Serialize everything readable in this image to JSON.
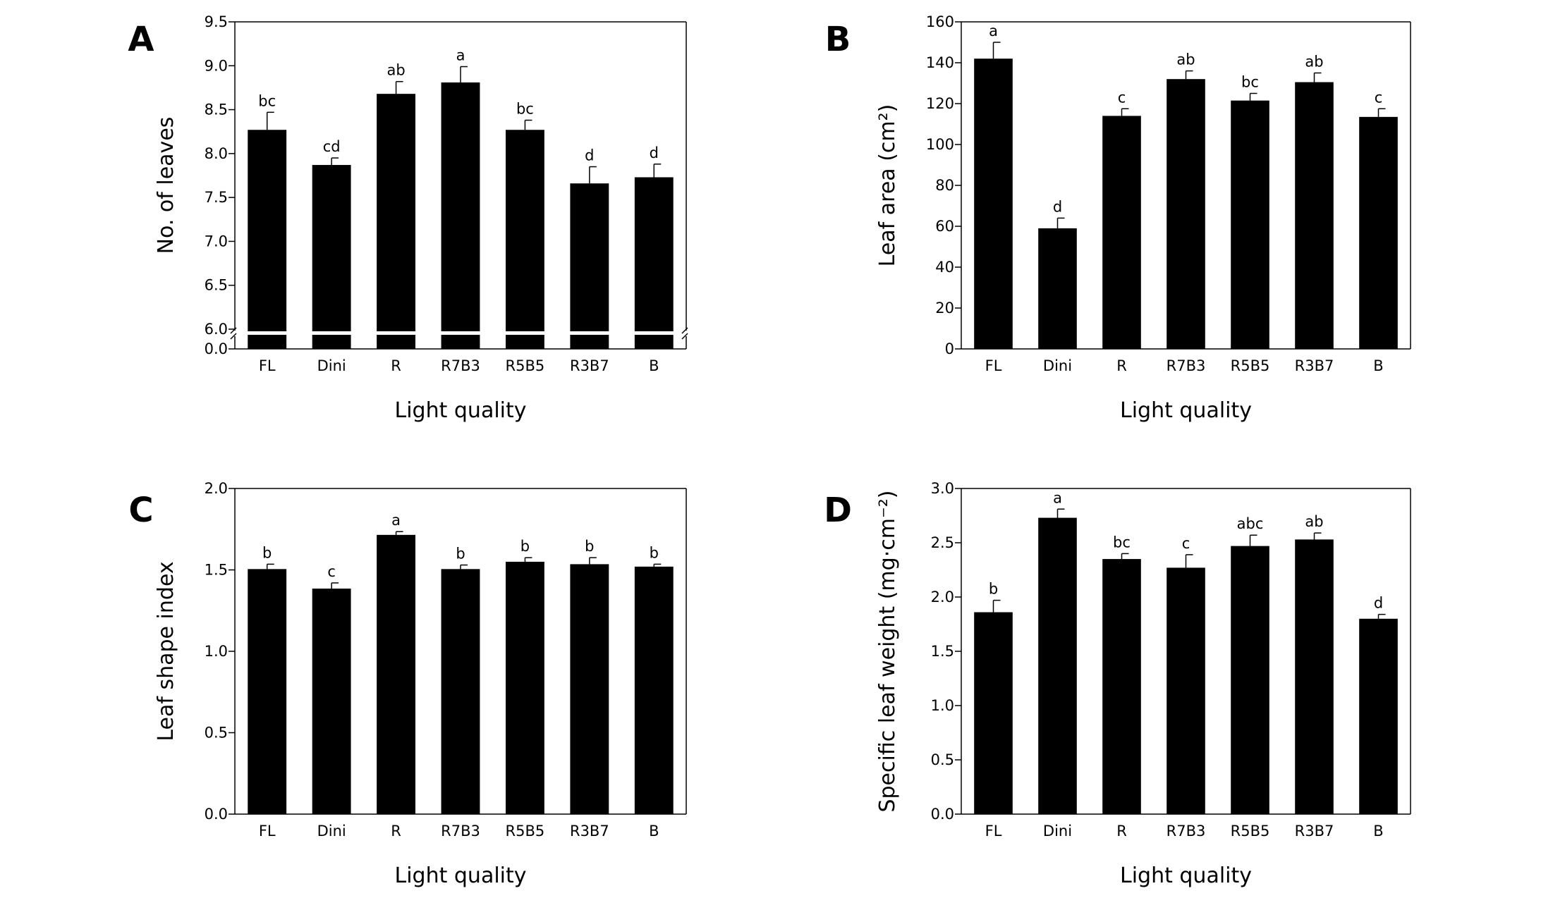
{
  "figure": {
    "background": "#ffffff",
    "bar_color": "#000000"
  },
  "chart_data": [
    {
      "panel": "A",
      "type": "bar",
      "categories": [
        "FL",
        "Dini",
        "R",
        "R7B3",
        "R5B5",
        "R3B7",
        "B"
      ],
      "values": [
        8.27,
        7.87,
        8.68,
        8.81,
        8.27,
        7.66,
        7.73
      ],
      "errors": [
        0.2,
        0.08,
        0.14,
        0.18,
        0.11,
        0.19,
        0.15
      ],
      "letters": [
        "bc",
        "cd",
        "ab",
        "a",
        "bc",
        "d",
        "d"
      ],
      "xlabel": "Light quality",
      "ylabel": "No. of leaves",
      "ylim": [
        6.0,
        9.5
      ],
      "yticks": [
        6.0,
        6.5,
        7.0,
        7.5,
        8.0,
        8.5,
        9.0,
        9.5
      ],
      "ytick_labels": [
        "6.0",
        "6.5",
        "7.0",
        "7.5",
        "8.0",
        "8.5",
        "9.0",
        "9.5"
      ],
      "axis_break": true,
      "break_label": "0.0"
    },
    {
      "panel": "B",
      "type": "bar",
      "categories": [
        "FL",
        "Dini",
        "R",
        "R7B3",
        "R5B5",
        "R3B7",
        "B"
      ],
      "values": [
        142,
        59,
        114,
        132,
        121.5,
        130.5,
        113.5
      ],
      "errors": [
        8,
        5,
        3.5,
        4,
        3.5,
        4.5,
        4
      ],
      "letters": [
        "a",
        "d",
        "c",
        "ab",
        "bc",
        "ab",
        "c"
      ],
      "xlabel": "Light quality",
      "ylabel": "Leaf area (cm²)",
      "ylim": [
        0,
        160
      ],
      "yticks": [
        0,
        20,
        40,
        60,
        80,
        100,
        120,
        140,
        160
      ],
      "ytick_labels": [
        "0",
        "20",
        "40",
        "60",
        "80",
        "100",
        "120",
        "140",
        "160"
      ]
    },
    {
      "panel": "C",
      "type": "bar",
      "categories": [
        "FL",
        "Dini",
        "R",
        "R7B3",
        "R5B5",
        "R3B7",
        "B"
      ],
      "values": [
        1.505,
        1.385,
        1.715,
        1.505,
        1.55,
        1.535,
        1.52
      ],
      "errors": [
        0.03,
        0.035,
        0.02,
        0.025,
        0.025,
        0.04,
        0.015
      ],
      "letters": [
        "b",
        "c",
        "a",
        "b",
        "b",
        "b",
        "b"
      ],
      "xlabel": "Light quality",
      "ylabel": "Leaf shape index",
      "ylim": [
        0.0,
        2.0
      ],
      "yticks": [
        0.0,
        0.5,
        1.0,
        1.5,
        2.0
      ],
      "ytick_labels": [
        "0.0",
        "0.5",
        "1.0",
        "1.5",
        "2.0"
      ]
    },
    {
      "panel": "D",
      "type": "bar",
      "categories": [
        "FL",
        "Dini",
        "R",
        "R7B3",
        "R5B5",
        "R3B7",
        "B"
      ],
      "values": [
        1.86,
        2.73,
        2.35,
        2.27,
        2.47,
        2.53,
        1.8
      ],
      "errors": [
        0.11,
        0.08,
        0.05,
        0.12,
        0.1,
        0.06,
        0.04
      ],
      "letters": [
        "b",
        "a",
        "bc",
        "c",
        "abc",
        "ab",
        "d"
      ],
      "xlabel": "Light quality",
      "ylabel": "Specific leaf weight (mg·cm⁻²)",
      "ylim": [
        0.0,
        3.0
      ],
      "yticks": [
        0.0,
        0.5,
        1.0,
        1.5,
        2.0,
        2.5,
        3.0
      ],
      "ytick_labels": [
        "0.0",
        "0.5",
        "1.0",
        "1.5",
        "2.0",
        "2.5",
        "3.0"
      ]
    }
  ]
}
